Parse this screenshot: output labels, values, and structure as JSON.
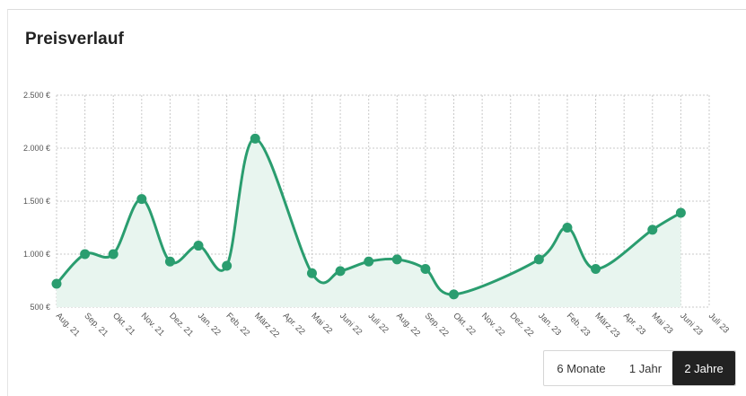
{
  "chart_data": {
    "type": "line",
    "title": "Preisverlauf",
    "y_ticks": [
      "500 €",
      "1.000 €",
      "1.500 €",
      "2.000 €",
      "2.500 €"
    ],
    "y_tick_values": [
      500,
      1000,
      1500,
      2000,
      2500
    ],
    "ylim": [
      500,
      2500
    ],
    "x_ticks": [
      "Aug. 21",
      "Sep. 21",
      "Okt. 21",
      "Nov. 21",
      "Dez. 21",
      "Jan. 22",
      "Feb. 22",
      "März 22",
      "Apr. 22",
      "Mai 22",
      "Juni 22",
      "Juli 22",
      "Aug. 22",
      "Sep. 22",
      "Okt. 22",
      "Nov. 22",
      "Dez. 22",
      "Jan. 23",
      "Feb. 23",
      "März 23",
      "Apr. 23",
      "Mai 23",
      "Juni 23",
      "Juli 23"
    ],
    "grid": true,
    "line_color": "#2a9d6f",
    "fill_color": "#e8f5ef",
    "points": [
      {
        "x": "Aug. 21",
        "y": 720
      },
      {
        "x": "Sep. 21",
        "y": 1000
      },
      {
        "x": "Okt. 21",
        "y": 1000
      },
      {
        "x": "Nov. 21",
        "y": 1520
      },
      {
        "x": "Dez. 21",
        "y": 930
      },
      {
        "x": "Jan. 22",
        "y": 1080
      },
      {
        "x": "Feb. 22",
        "y": 890
      },
      {
        "x": "März 22",
        "y": 2090
      },
      {
        "x": "Mai 22",
        "y": 820
      },
      {
        "x": "Juni 22",
        "y": 840
      },
      {
        "x": "Juli 22",
        "y": 930
      },
      {
        "x": "Aug. 22",
        "y": 950
      },
      {
        "x": "Sep. 22",
        "y": 860
      },
      {
        "x": "Okt. 22",
        "y": 620
      },
      {
        "x": "Jan. 23",
        "y": 950
      },
      {
        "x": "Feb. 23",
        "y": 1250
      },
      {
        "x": "März 23",
        "y": 860
      },
      {
        "x": "Mai 23",
        "y": 1230
      },
      {
        "x": "Juni 23",
        "y": 1390
      }
    ]
  },
  "range_selector": {
    "options": [
      "6 Monate",
      "1 Jahr",
      "2 Jahre"
    ],
    "active": "2 Jahre"
  }
}
